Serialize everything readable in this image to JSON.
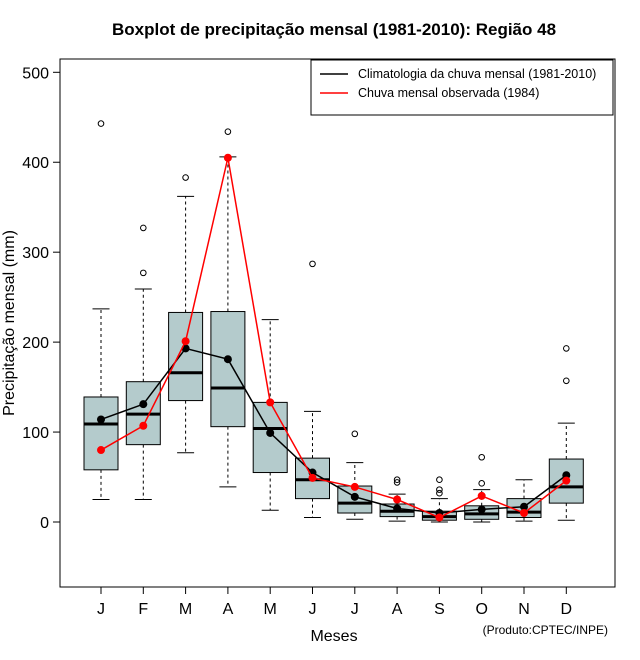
{
  "chart_data": {
    "type": "boxplot",
    "title": "Boxplot de precipitação mensal (1981-2010): Região 48",
    "xlabel": "Meses",
    "ylabel": "Precipitação mensal (mm)",
    "credit": "(Produto:CPTEC/INPE)",
    "categories": [
      "J",
      "F",
      "M",
      "A",
      "M",
      "J",
      "J",
      "A",
      "S",
      "O",
      "N",
      "D"
    ],
    "ylim": [
      -70,
      515
    ],
    "yticks": [
      0,
      100,
      200,
      300,
      400,
      500
    ],
    "box_color": "#b4cbcc",
    "boxes": [
      {
        "whisker_low": 25,
        "q1": 58,
        "median": 109,
        "q3": 139,
        "whisker_high": 237,
        "outliers": [
          443
        ]
      },
      {
        "whisker_low": 25,
        "q1": 86,
        "median": 120,
        "q3": 156,
        "whisker_high": 259,
        "outliers": [
          277,
          327
        ]
      },
      {
        "whisker_low": 77,
        "q1": 135,
        "median": 166,
        "q3": 233,
        "whisker_high": 362,
        "outliers": [
          383
        ]
      },
      {
        "whisker_low": 39,
        "q1": 106,
        "median": 149,
        "q3": 234,
        "whisker_high": 406,
        "outliers": [
          434
        ]
      },
      {
        "whisker_low": 13,
        "q1": 55,
        "median": 104,
        "q3": 133,
        "whisker_high": 225,
        "outliers": []
      },
      {
        "whisker_low": 5,
        "q1": 26,
        "median": 47,
        "q3": 71,
        "whisker_high": 123,
        "outliers": [
          287
        ]
      },
      {
        "whisker_low": 3,
        "q1": 10,
        "median": 21,
        "q3": 40,
        "whisker_high": 66,
        "outliers": [
          98
        ]
      },
      {
        "whisker_low": 1,
        "q1": 6,
        "median": 12,
        "q3": 20,
        "whisker_high": 31,
        "outliers": [
          44,
          47
        ]
      },
      {
        "whisker_low": 0,
        "q1": 2,
        "median": 6,
        "q3": 12,
        "whisker_high": 26,
        "outliers": [
          32,
          36,
          47
        ]
      },
      {
        "whisker_low": 0,
        "q1": 3,
        "median": 9,
        "q3": 18,
        "whisker_high": 36,
        "outliers": [
          43,
          72
        ]
      },
      {
        "whisker_low": 1,
        "q1": 5,
        "median": 11,
        "q3": 26,
        "whisker_high": 47,
        "outliers": []
      },
      {
        "whisker_low": 2,
        "q1": 21,
        "median": 39,
        "q3": 70,
        "whisker_high": 110,
        "outliers": [
          157,
          193
        ]
      }
    ],
    "series": [
      {
        "name": "Climatologia da chuva mensal (1981-2010)",
        "color": "#000000",
        "values": [
          114,
          131,
          193,
          181,
          99,
          55,
          28,
          15,
          10,
          14,
          17,
          52
        ]
      },
      {
        "name": "Chuva mensal observada (1984)",
        "color": "#ff0000",
        "values": [
          80,
          107,
          201,
          405,
          133,
          49,
          39,
          25,
          5,
          29,
          10,
          46
        ]
      }
    ],
    "legend_position": "top-right"
  }
}
